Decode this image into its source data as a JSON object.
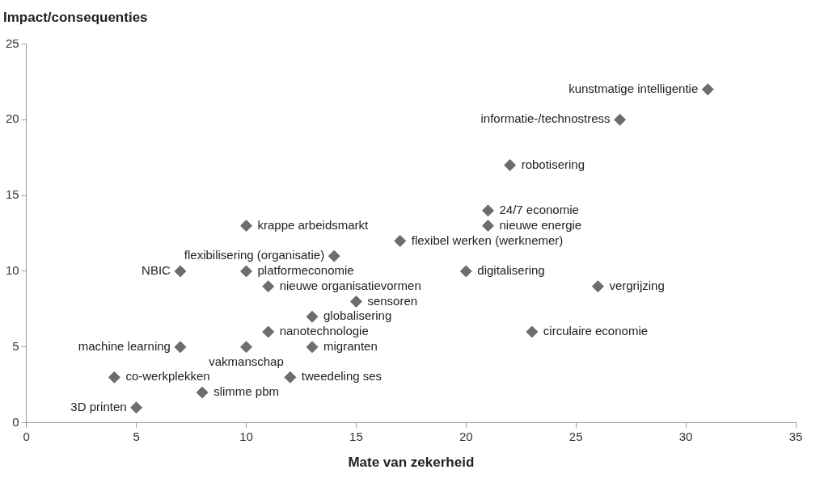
{
  "chart_data": {
    "type": "scatter",
    "ylabel": "Impact/consequenties",
    "xlabel": "Mate van zekerheid",
    "xlim": [
      0,
      35
    ],
    "xticks": [
      0,
      5,
      10,
      15,
      20,
      25,
      30,
      35
    ],
    "ylim": [
      0,
      25
    ],
    "yticks": [
      0,
      5,
      10,
      15,
      20,
      25
    ],
    "grid": false,
    "legend": false,
    "marker": "diamond",
    "series": [
      {
        "color": "#6d6d6d",
        "x": [
          31,
          27,
          22,
          21,
          21,
          10,
          17,
          14,
          7,
          10,
          20,
          11,
          26,
          15,
          13,
          11,
          23,
          7,
          10,
          13,
          4,
          12,
          8,
          5
        ],
        "values": [
          22,
          20,
          17,
          14,
          13,
          13,
          12,
          11,
          10,
          10,
          10,
          9,
          9,
          8,
          7,
          6,
          6,
          5,
          5,
          5,
          3,
          3,
          2,
          1
        ]
      }
    ],
    "annotations": [
      {
        "text": "kunstmatige intelligentie",
        "x": 31,
        "y": 22
      },
      {
        "text": "informatie-/technostress",
        "x": 27,
        "y": 20
      },
      {
        "text": "robotisering",
        "x": 22,
        "y": 17
      },
      {
        "text": "24/7 economie",
        "x": 21,
        "y": 14
      },
      {
        "text": "nieuwe energie",
        "x": 21,
        "y": 13
      },
      {
        "text": "krappe arbeidsmarkt",
        "x": 10,
        "y": 13
      },
      {
        "text": "flexibel werken (werknemer)",
        "x": 17,
        "y": 12
      },
      {
        "text": "flexibilisering (organisatie)",
        "x": 14,
        "y": 11
      },
      {
        "text": "NBIC",
        "x": 7,
        "y": 10
      },
      {
        "text": "platformeconomie",
        "x": 10,
        "y": 10
      },
      {
        "text": "digitalisering",
        "x": 20,
        "y": 10
      },
      {
        "text": "nieuwe organisatievormen",
        "x": 11,
        "y": 9
      },
      {
        "text": "vergrijzing",
        "x": 26,
        "y": 9
      },
      {
        "text": "sensoren",
        "x": 15,
        "y": 8
      },
      {
        "text": "globalisering",
        "x": 13,
        "y": 7
      },
      {
        "text": "nanotechnologie",
        "x": 11,
        "y": 6
      },
      {
        "text": "circulaire economie",
        "x": 23,
        "y": 6
      },
      {
        "text": "machine learning",
        "x": 7,
        "y": 5
      },
      {
        "text": "vakmanschap",
        "x": 10,
        "y": 5
      },
      {
        "text": "migranten",
        "x": 13,
        "y": 5
      },
      {
        "text": "co-werkplekken",
        "x": 4,
        "y": 3
      },
      {
        "text": "tweedeling ses",
        "x": 12,
        "y": 3
      },
      {
        "text": "slimme pbm",
        "x": 8,
        "y": 2
      },
      {
        "text": "3D printen",
        "x": 5,
        "y": 1
      }
    ]
  }
}
